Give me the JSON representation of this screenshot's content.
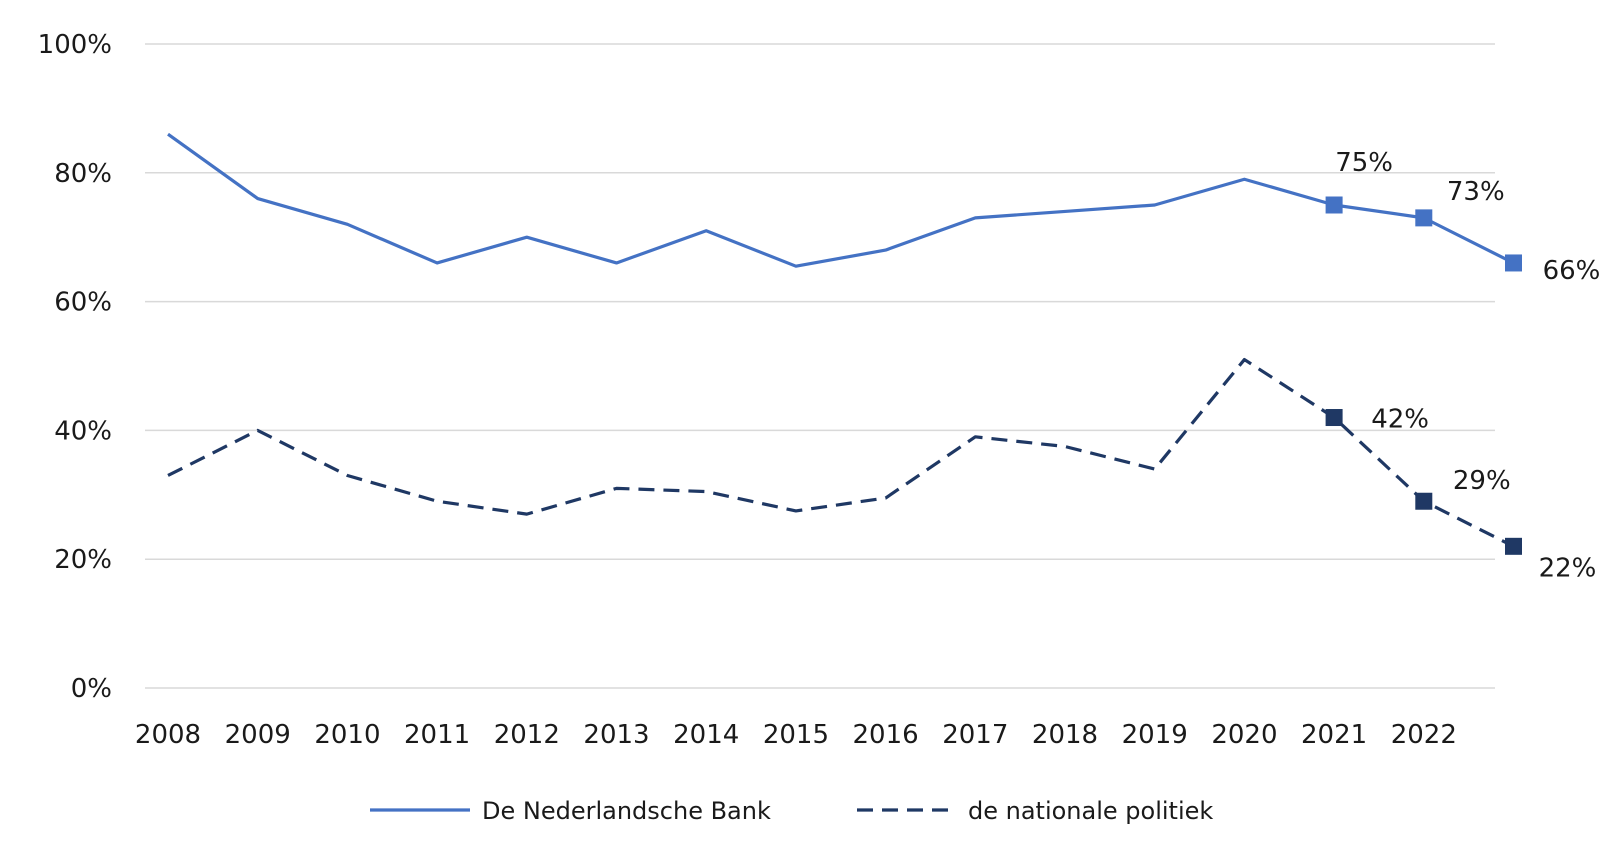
{
  "chart_data": {
    "type": "line",
    "x": [
      "2008",
      "2009",
      "2010",
      "2011",
      "2012",
      "2013",
      "2014",
      "2015",
      "2016",
      "2017",
      "2018",
      "2019",
      "2020",
      "2021",
      "2022",
      ""
    ],
    "x_tick_labels": [
      "2008",
      "2009",
      "2010",
      "2011",
      "2012",
      "2013",
      "2014",
      "2015",
      "2016",
      "2017",
      "2018",
      "2019",
      "2020",
      "2021",
      "2022"
    ],
    "y_tick_labels": [
      "0%",
      "20%",
      "40%",
      "60%",
      "80%",
      "100%"
    ],
    "ylim": [
      0,
      100
    ],
    "grid": true,
    "legend_position": "bottom",
    "series": [
      {
        "name": "De Nederlandsche Bank",
        "color": "#4472c4",
        "style": "solid",
        "values": [
          86,
          76,
          72,
          66,
          70,
          66,
          71,
          65.5,
          68,
          73,
          74,
          75,
          79,
          75,
          73,
          66
        ],
        "marker_indices": [
          13,
          14,
          15
        ],
        "labels": {
          "13": "75%",
          "14": "73%",
          "15": "66%"
        }
      },
      {
        "name": "de nationale politiek",
        "color": "#1f3864",
        "style": "dashed",
        "values": [
          33,
          40,
          33,
          29,
          27,
          31,
          30.5,
          27.5,
          29.5,
          39,
          37.5,
          34,
          51,
          42,
          29,
          22
        ],
        "marker_indices": [
          13,
          14,
          15
        ],
        "labels": {
          "13": "42%",
          "14": "29%",
          "15": "22%"
        }
      }
    ]
  }
}
